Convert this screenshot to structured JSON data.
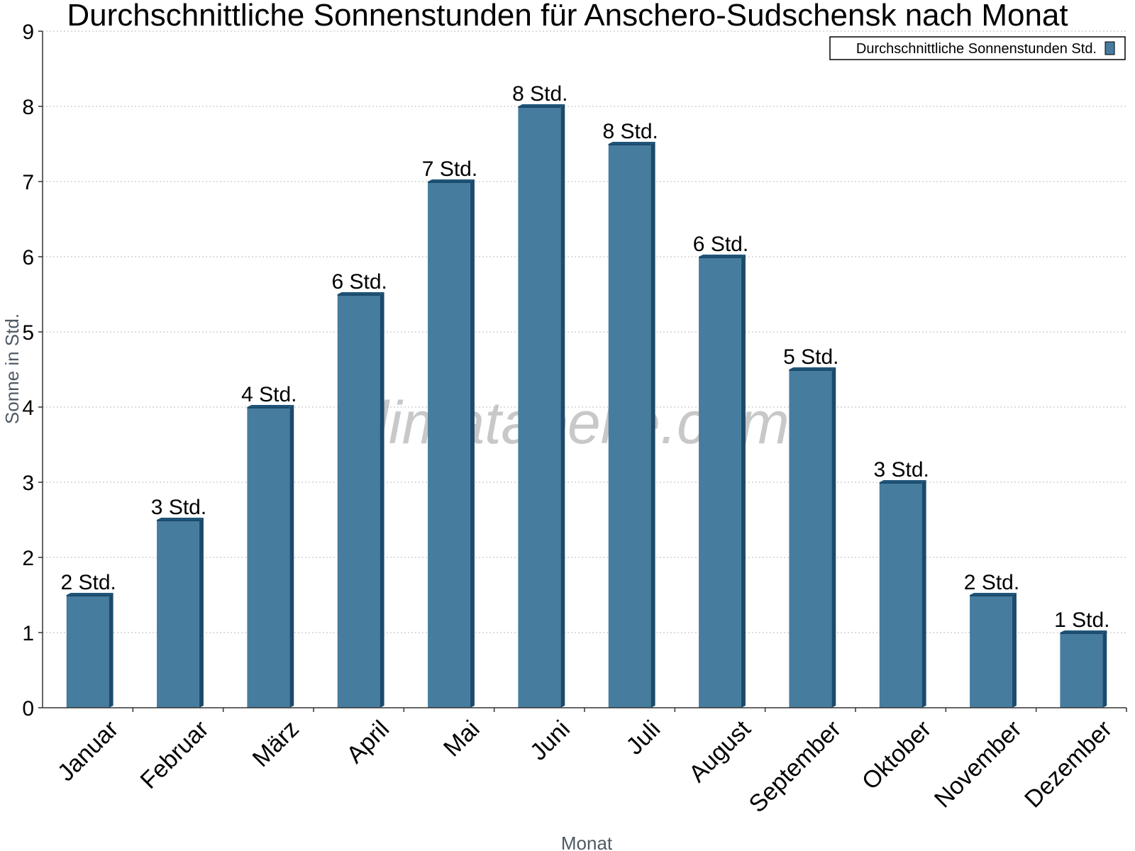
{
  "chart_data": {
    "type": "bar",
    "title": "Durchschnittliche Sonnenstunden für Anschero-Sudschensk nach Monat",
    "xlabel": "Monat",
    "ylabel": "Sonne in Std.",
    "ylim": [
      0,
      9
    ],
    "yticks": [
      "0",
      "1",
      "2",
      "3",
      "4",
      "5",
      "6",
      "7",
      "8",
      "9"
    ],
    "categories": [
      "Januar",
      "Februar",
      "März",
      "April",
      "Mai",
      "Juni",
      "Juli",
      "August",
      "September",
      "Oktober",
      "November",
      "Dezember"
    ],
    "series": [
      {
        "name": "Durchschnittliche Sonnenstunden Std.",
        "values": [
          1.5,
          2.5,
          4,
          5.5,
          7,
          8,
          7.5,
          6,
          4.5,
          3,
          1.5,
          1
        ],
        "labels": [
          "2 Std.",
          "3 Std.",
          "4 Std.",
          "6 Std.",
          "7 Std.",
          "8 Std.",
          "8 Std.",
          "6 Std.",
          "5 Std.",
          "3 Std.",
          "2 Std.",
          "1 Std."
        ]
      }
    ],
    "grid": true,
    "legend_position": "top-right",
    "watermark": "klimatabelle.com",
    "colors": {
      "bar": "#467c9e",
      "bar_side": "#1b4a6b",
      "bar_top": "#1f5478",
      "grid": "#bbbbbb",
      "axis": "#333333"
    }
  }
}
